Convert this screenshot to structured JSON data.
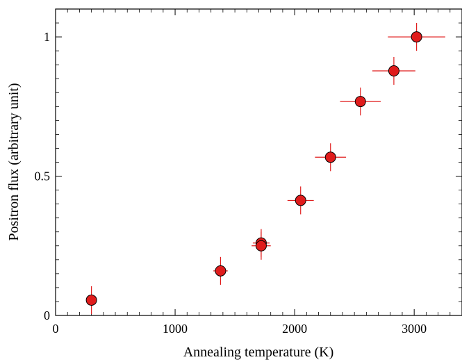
{
  "chart_data": {
    "type": "scatter",
    "xlabel": "Annealing temperature (K)",
    "ylabel": "Positron flux (arbitrary unit)",
    "xlim": [
      0,
      3400
    ],
    "ylim": [
      0,
      1.1
    ],
    "xticks": [
      0,
      1000,
      2000,
      3000
    ],
    "yticks": [
      0,
      0.5,
      1
    ],
    "xtick_labels": [
      "0",
      "1000",
      "2000",
      "3000"
    ],
    "ytick_labels": [
      "0",
      "0.5",
      "1"
    ],
    "grid": false,
    "marker_color": "#e01c1c",
    "errorbar_color": "#e01c1c",
    "points": [
      {
        "x": 300,
        "y": 0.055,
        "xerr": 0,
        "yerr": 0.05
      },
      {
        "x": 1380,
        "y": 0.16,
        "xerr": 60,
        "yerr": 0.05
      },
      {
        "x": 1720,
        "y": 0.26,
        "xerr": 70,
        "yerr": 0.05
      },
      {
        "x": 1720,
        "y": 0.25,
        "xerr": 80,
        "yerr": 0.05
      },
      {
        "x": 2050,
        "y": 0.413,
        "xerr": 110,
        "yerr": 0.05
      },
      {
        "x": 2300,
        "y": 0.568,
        "xerr": 130,
        "yerr": 0.05
      },
      {
        "x": 2550,
        "y": 0.768,
        "xerr": 170,
        "yerr": 0.05
      },
      {
        "x": 2830,
        "y": 0.878,
        "xerr": 180,
        "yerr": 0.05
      },
      {
        "x": 3020,
        "y": 1.0,
        "xerr": 240,
        "yerr": 0.05
      }
    ]
  }
}
